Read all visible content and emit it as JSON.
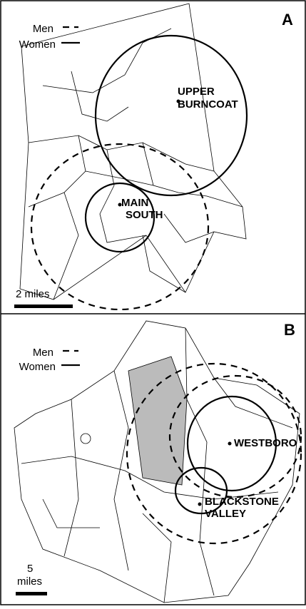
{
  "panels": [
    {
      "label": "A",
      "legend": {
        "men": "Men",
        "women": "Women"
      },
      "places": [
        {
          "lines": [
            "UPPER",
            "BURNCOAT"
          ]
        },
        {
          "lines": [
            "MAIN",
            "SOUTH"
          ]
        }
      ],
      "scale": {
        "lines": [
          "2 miles"
        ]
      }
    },
    {
      "label": "B",
      "legend": {
        "men": "Men",
        "women": "Women"
      },
      "places": [
        {
          "lines": [
            "WESTBORO"
          ]
        },
        {
          "lines": [
            "BLACKSTONE",
            "VALLEY"
          ]
        }
      ],
      "scale": {
        "lines": [
          "5",
          "miles"
        ]
      }
    }
  ]
}
